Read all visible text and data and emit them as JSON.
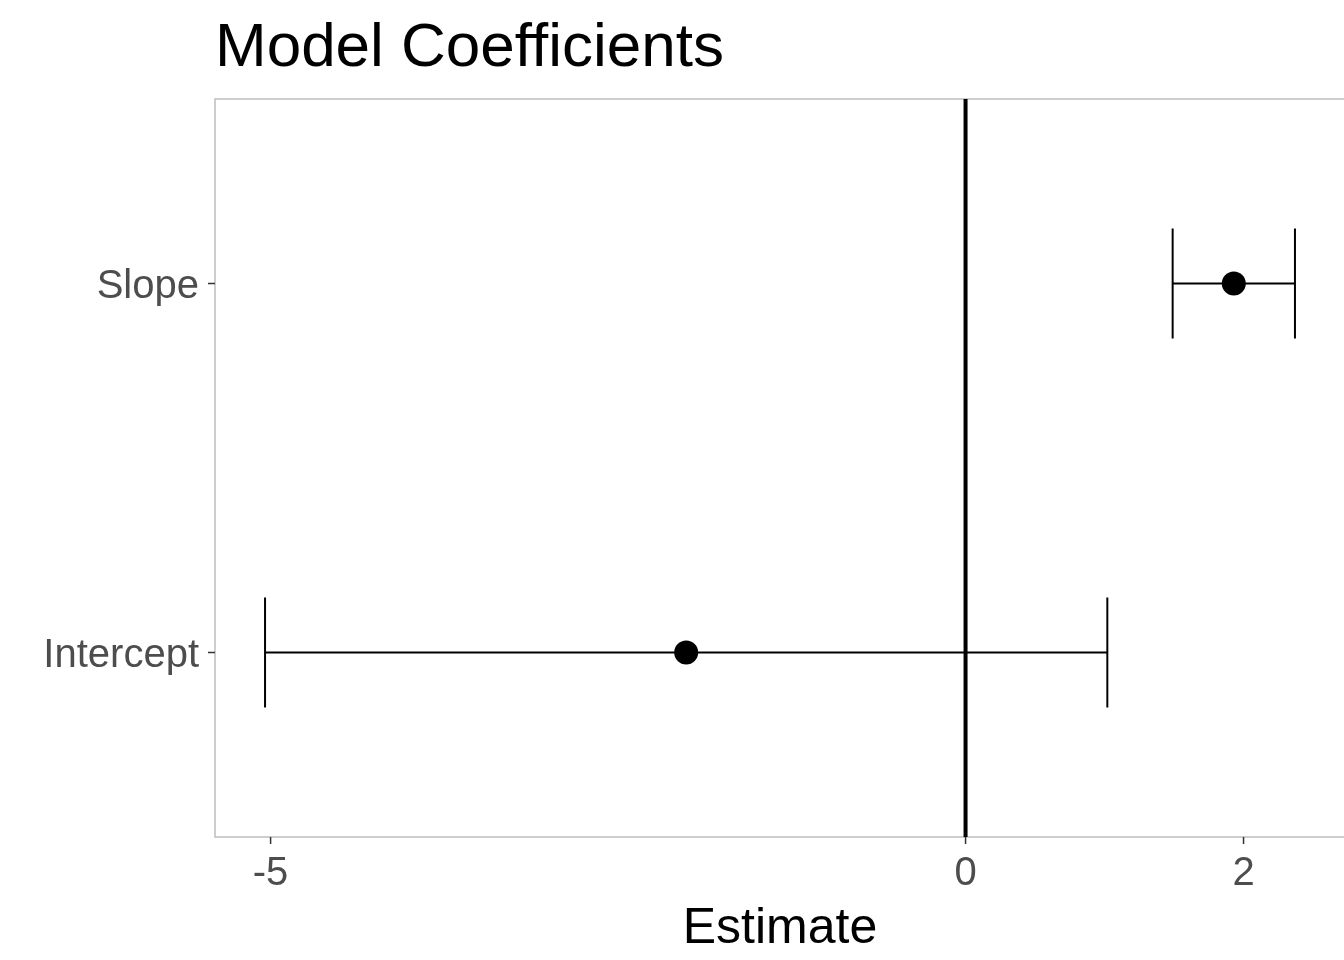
{
  "chart_data": {
    "type": "scatter",
    "title": "Model Coefficients",
    "xlabel": "Estimate",
    "orientation": "horizontal",
    "categories": [
      "Slope",
      "Intercept"
    ],
    "values": [
      1.93,
      -2.01
    ],
    "errors": [
      [
        1.49,
        2.37
      ],
      [
        -5.04,
        1.02
      ]
    ],
    "color": "#000000",
    "marker": "circle",
    "xlim": [
      -5.4,
      2.73
    ],
    "xticks": [
      -5,
      0,
      2
    ],
    "ref_lines": [
      {
        "axis": "x",
        "value": 0,
        "color": "#000000",
        "line_style": "solid"
      }
    ],
    "grid": false
  }
}
